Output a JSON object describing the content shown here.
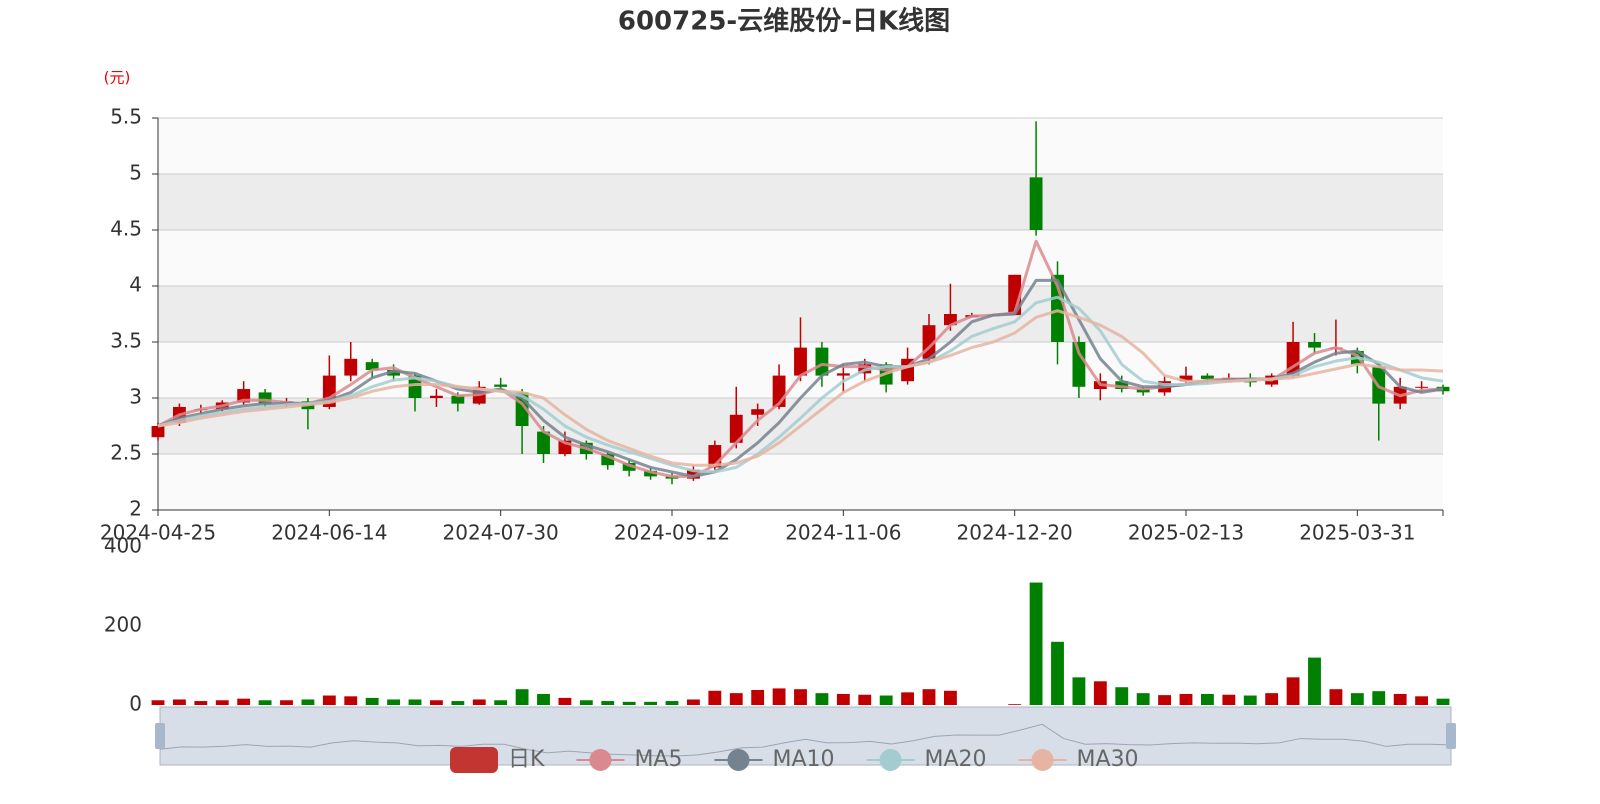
{
  "chart_data": [
    {
      "type": "candlestick",
      "title": "600725-云维股份-日K线图",
      "y_axis_label": "(元)",
      "up_color": "#c00000",
      "down_color": "#008000",
      "categories": [
        "2024-04-25",
        null,
        null,
        null,
        null,
        null,
        null,
        null,
        "2024-06-14",
        null,
        null,
        null,
        null,
        null,
        null,
        null,
        "2024-07-30",
        null,
        null,
        null,
        null,
        null,
        null,
        null,
        "2024-09-12",
        null,
        null,
        null,
        null,
        null,
        null,
        null,
        "2024-11-06",
        null,
        null,
        null,
        null,
        null,
        null,
        null,
        "2024-12-20",
        null,
        null,
        null,
        null,
        null,
        null,
        null,
        "2025-02-13",
        null,
        null,
        null,
        null,
        null,
        null,
        null,
        "2025-03-31",
        null,
        null,
        null,
        null
      ],
      "ylim": [
        2,
        5.5
      ],
      "yticks": [
        2,
        2.5,
        3,
        3.5,
        4,
        4.5,
        5,
        5.5
      ],
      "grid": true,
      "series": [
        {
          "name": "日K",
          "color": "#c23531",
          "values": [
            [
              2.65,
              2.75,
              2.62,
              2.78
            ],
            [
              2.78,
              2.92,
              2.75,
              2.95
            ],
            [
              2.9,
              2.9,
              2.86,
              2.94
            ],
            [
              2.9,
              2.96,
              2.88,
              2.98
            ],
            [
              2.96,
              3.08,
              2.94,
              3.15
            ],
            [
              3.05,
              2.95,
              2.92,
              3.08
            ],
            [
              2.95,
              2.97,
              2.92,
              3.0
            ],
            [
              2.97,
              2.9,
              2.72,
              3.0
            ],
            [
              2.92,
              3.2,
              2.9,
              3.38
            ],
            [
              3.2,
              3.35,
              3.15,
              3.5
            ],
            [
              3.32,
              3.25,
              3.18,
              3.35
            ],
            [
              3.25,
              3.2,
              3.15,
              3.3
            ],
            [
              3.2,
              3.0,
              2.88,
              3.22
            ],
            [
              3.0,
              3.02,
              2.92,
              3.08
            ],
            [
              3.02,
              2.95,
              2.88,
              3.05
            ],
            [
              2.95,
              3.1,
              2.94,
              3.15
            ],
            [
              3.12,
              3.1,
              3.05,
              3.18
            ],
            [
              3.05,
              2.75,
              2.5,
              3.08
            ],
            [
              2.7,
              2.5,
              2.42,
              2.75
            ],
            [
              2.5,
              2.62,
              2.48,
              2.7
            ],
            [
              2.6,
              2.5,
              2.45,
              2.62
            ],
            [
              2.5,
              2.4,
              2.36,
              2.52
            ],
            [
              2.42,
              2.35,
              2.3,
              2.45
            ],
            [
              2.35,
              2.3,
              2.27,
              2.38
            ],
            [
              2.3,
              2.28,
              2.23,
              2.33
            ],
            [
              2.28,
              2.36,
              2.26,
              2.4
            ],
            [
              2.38,
              2.58,
              2.36,
              2.62
            ],
            [
              2.6,
              2.85,
              2.55,
              3.1
            ],
            [
              2.85,
              2.9,
              2.75,
              2.95
            ],
            [
              2.92,
              3.2,
              2.9,
              3.3
            ],
            [
              3.2,
              3.45,
              3.15,
              3.72
            ],
            [
              3.45,
              3.2,
              3.1,
              3.5
            ],
            [
              3.2,
              3.22,
              3.05,
              3.3
            ],
            [
              3.22,
              3.3,
              3.15,
              3.35
            ],
            [
              3.3,
              3.12,
              3.05,
              3.32
            ],
            [
              3.15,
              3.35,
              3.12,
              3.45
            ],
            [
              3.35,
              3.65,
              3.3,
              3.75
            ],
            [
              3.65,
              3.75,
              3.6,
              4.02
            ],
            [
              3.72,
              3.74,
              3.72,
              3.76
            ],
            [
              3.74,
              3.74,
              3.73,
              3.75
            ],
            [
              3.74,
              4.1,
              3.74,
              4.1
            ],
            [
              4.97,
              4.5,
              4.45,
              5.47
            ],
            [
              4.1,
              3.5,
              3.3,
              4.22
            ],
            [
              3.5,
              3.1,
              3.0,
              3.55
            ],
            [
              3.08,
              3.15,
              2.98,
              3.22
            ],
            [
              3.15,
              3.08,
              3.05,
              3.2
            ],
            [
              3.08,
              3.05,
              3.02,
              3.1
            ],
            [
              3.05,
              3.15,
              3.02,
              3.2
            ],
            [
              3.15,
              3.2,
              3.12,
              3.28
            ],
            [
              3.2,
              3.17,
              3.13,
              3.22
            ],
            [
              3.17,
              3.18,
              3.14,
              3.22
            ],
            [
              3.18,
              3.14,
              3.1,
              3.22
            ],
            [
              3.12,
              3.2,
              3.1,
              3.22
            ],
            [
              3.2,
              3.5,
              3.18,
              3.68
            ],
            [
              3.5,
              3.45,
              3.4,
              3.58
            ],
            [
              3.45,
              3.45,
              3.38,
              3.7
            ],
            [
              3.42,
              3.3,
              3.22,
              3.45
            ],
            [
              3.28,
              2.95,
              2.62,
              3.3
            ],
            [
              2.95,
              3.1,
              2.9,
              3.18
            ],
            [
              3.1,
              3.1,
              3.05,
              3.15
            ],
            [
              3.1,
              3.06,
              3.03,
              3.12
            ]
          ]
        },
        {
          "name": "MA5",
          "color": "#d9898f",
          "values": [
            2.75,
            2.85,
            2.9,
            2.93,
            2.98,
            2.98,
            2.96,
            2.95,
            3.0,
            3.12,
            3.25,
            3.27,
            3.18,
            3.1,
            3.02,
            3.03,
            3.08,
            2.95,
            2.7,
            2.6,
            2.55,
            2.48,
            2.4,
            2.34,
            2.3,
            2.3,
            2.4,
            2.6,
            2.8,
            2.95,
            3.2,
            3.3,
            3.28,
            3.28,
            3.25,
            3.28,
            3.45,
            3.65,
            3.73,
            3.74,
            3.76,
            4.4,
            4.0,
            3.4,
            3.12,
            3.1,
            3.08,
            3.1,
            3.12,
            3.16,
            3.17,
            3.17,
            3.16,
            3.28,
            3.4,
            3.45,
            3.38,
            3.1,
            3.02,
            3.07,
            3.08
          ]
        },
        {
          "name": "MA10",
          "color": "#75828f",
          "values": [
            2.75,
            2.82,
            2.86,
            2.9,
            2.93,
            2.95,
            2.95,
            2.95,
            2.98,
            3.05,
            3.18,
            3.24,
            3.22,
            3.15,
            3.08,
            3.05,
            3.08,
            3.0,
            2.8,
            2.65,
            2.58,
            2.52,
            2.45,
            2.38,
            2.34,
            2.3,
            2.34,
            2.45,
            2.6,
            2.78,
            3.0,
            3.2,
            3.3,
            3.32,
            3.28,
            3.28,
            3.35,
            3.5,
            3.68,
            3.74,
            3.75,
            4.05,
            4.05,
            3.7,
            3.35,
            3.15,
            3.1,
            3.1,
            3.12,
            3.15,
            3.16,
            3.17,
            3.17,
            3.22,
            3.32,
            3.4,
            3.42,
            3.3,
            3.1,
            3.05,
            3.08
          ]
        },
        {
          "name": "MA20",
          "color": "#a3ccd0",
          "values": [
            2.75,
            2.8,
            2.84,
            2.87,
            2.9,
            2.92,
            2.94,
            2.95,
            2.97,
            3.02,
            3.1,
            3.16,
            3.18,
            3.15,
            3.1,
            3.08,
            3.06,
            3.02,
            2.9,
            2.75,
            2.65,
            2.58,
            2.52,
            2.46,
            2.4,
            2.35,
            2.34,
            2.38,
            2.5,
            2.65,
            2.82,
            3.0,
            3.15,
            3.25,
            3.28,
            3.28,
            3.32,
            3.42,
            3.55,
            3.62,
            3.68,
            3.85,
            3.9,
            3.8,
            3.6,
            3.3,
            3.15,
            3.12,
            3.12,
            3.13,
            3.15,
            3.16,
            3.17,
            3.2,
            3.28,
            3.33,
            3.36,
            3.32,
            3.25,
            3.18,
            3.15
          ]
        },
        {
          "name": "MA30",
          "color": "#e6b4a2",
          "values": [
            2.75,
            2.78,
            2.82,
            2.85,
            2.88,
            2.9,
            2.92,
            2.94,
            2.96,
            3.0,
            3.06,
            3.1,
            3.12,
            3.12,
            3.1,
            3.08,
            3.06,
            3.05,
            3.0,
            2.85,
            2.72,
            2.62,
            2.55,
            2.48,
            2.42,
            2.4,
            2.4,
            2.42,
            2.48,
            2.6,
            2.75,
            2.9,
            3.05,
            3.15,
            3.22,
            3.28,
            3.32,
            3.38,
            3.45,
            3.5,
            3.58,
            3.72,
            3.78,
            3.72,
            3.65,
            3.55,
            3.4,
            3.2,
            3.15,
            3.15,
            3.15,
            3.16,
            3.17,
            3.18,
            3.22,
            3.26,
            3.3,
            3.28,
            3.25,
            3.25,
            3.24
          ]
        }
      ]
    },
    {
      "type": "bar",
      "ylim": [
        0,
        400
      ],
      "yticks": [
        0,
        200,
        400
      ],
      "values": [
        12,
        14,
        10,
        12,
        16,
        12,
        12,
        14,
        24,
        22,
        18,
        14,
        14,
        12,
        10,
        14,
        12,
        40,
        28,
        18,
        12,
        10,
        8,
        8,
        10,
        14,
        36,
        30,
        38,
        42,
        40,
        30,
        28,
        26,
        24,
        32,
        40,
        36,
        0,
        0,
        2,
        310,
        160,
        70,
        60,
        45,
        30,
        25,
        28,
        28,
        26,
        24,
        30,
        70,
        120,
        40,
        30,
        35,
        28,
        22,
        16
      ]
    }
  ]
}
